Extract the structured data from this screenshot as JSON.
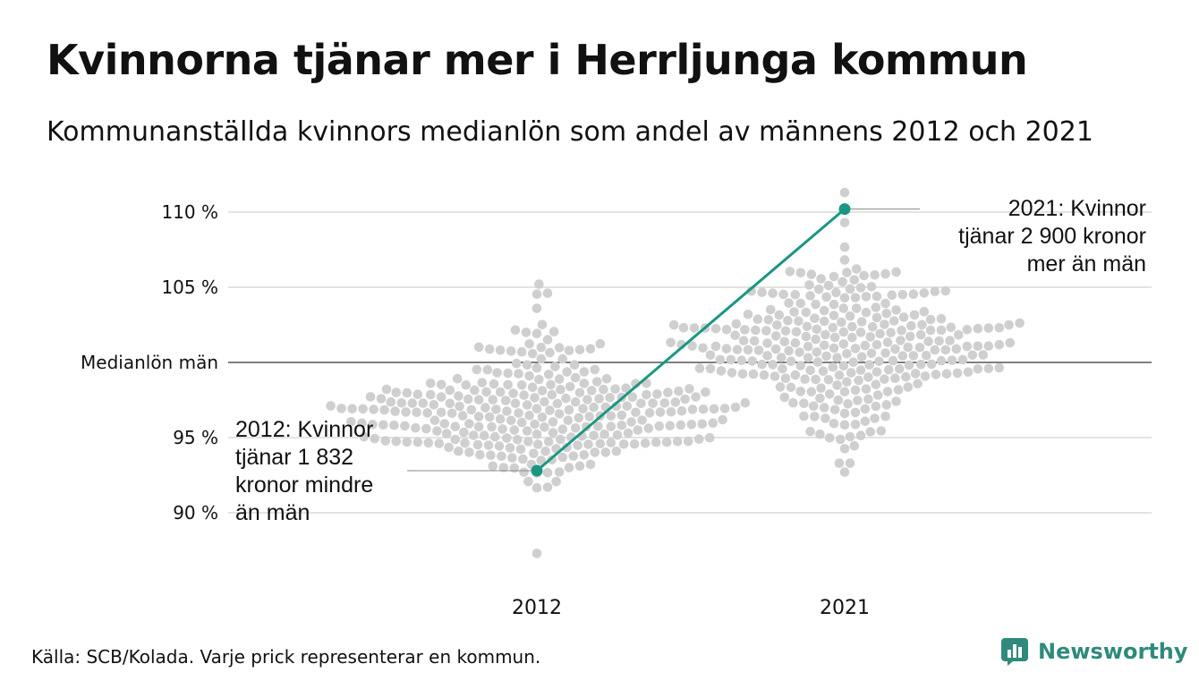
{
  "title": "Kvinnorna tjänar mer i Herrljunga kommun",
  "subtitle": "Kommunanställda kvinnors medianlön som andel av männens 2012 och 2021",
  "source": "Källa: SCB/Kolada. Varje prick representerar en kommun.",
  "brand": "Newsworthy",
  "colors": {
    "highlight": "#1b9683",
    "dots": "#cfcfcf",
    "grid": "#e3e3e3",
    "baseline": "#333333",
    "brand": "#2f8a7c"
  },
  "chart_data": {
    "type": "scatter",
    "categories": [
      "2012",
      "2021"
    ],
    "ylim": [
      86.5,
      112
    ],
    "yticks": [
      {
        "value": 110,
        "label": "110 %"
      },
      {
        "value": 105,
        "label": "105 %"
      },
      {
        "value": 100,
        "label": "Medianlön män"
      },
      {
        "value": 95,
        "label": "95 %"
      },
      {
        "value": 90,
        "label": "90 %"
      }
    ],
    "highlight": {
      "name": "Herrljunga",
      "points": [
        {
          "x": "2012",
          "y": 92.8
        },
        {
          "x": "2021",
          "y": 110.2
        }
      ]
    },
    "annotations": [
      {
        "category": "2012",
        "lines": [
          "2012: Kvinnor",
          "tjänar 1 832",
          "kronor mindre",
          "än män"
        ]
      },
      {
        "category": "2021",
        "lines": [
          "2021: Kvinnor",
          "tjänar 2 900 kronor",
          "mer än män"
        ]
      }
    ],
    "distribution": [
      {
        "category": "2012",
        "mean": 96.6,
        "sd": 2.4,
        "min": 87.3,
        "max": 105.2,
        "count": 290
      },
      {
        "category": "2021",
        "mean": 101.3,
        "sd": 2.6,
        "min": 92.7,
        "max": 111.3,
        "count": 290
      }
    ]
  }
}
